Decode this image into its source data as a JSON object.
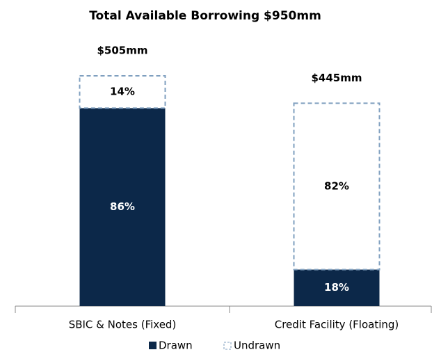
{
  "chart_data": {
    "type": "bar",
    "stacked": true,
    "title": "Total Available Borrowing $950mm",
    "categories": [
      "SBIC & Notes (Fixed)",
      "Credit Facility (Floating)"
    ],
    "totals": {
      "values": [
        505,
        445
      ],
      "value_labels": [
        "$505mm",
        "$445mm"
      ]
    },
    "series": [
      {
        "name": "Drawn",
        "color": "#0c2849",
        "values": [
          86,
          18
        ],
        "value_labels": [
          "86%",
          "18%"
        ]
      },
      {
        "name": "Undrawn",
        "color": "#7f9fbf",
        "values": [
          14,
          82
        ],
        "value_labels": [
          "14%",
          "82%"
        ]
      }
    ]
  }
}
